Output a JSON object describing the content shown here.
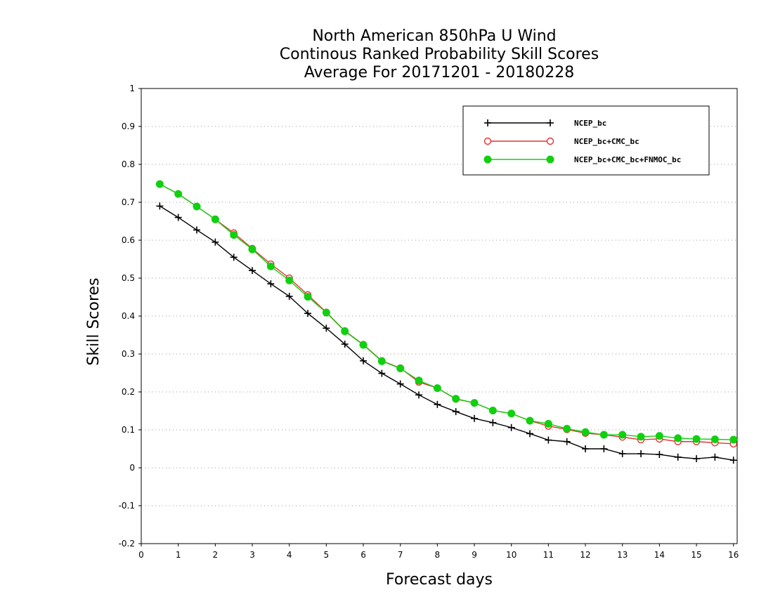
{
  "chart_data": {
    "type": "line",
    "title": [
      "North American 850hPa U Wind",
      "Continous Ranked Probability Skill Scores",
      "Average For 20171201 - 20180228"
    ],
    "xlabel": "Forecast days",
    "ylabel": "Skill Scores",
    "xlim": [
      0,
      16.1
    ],
    "ylim": [
      -0.2,
      1
    ],
    "xticks": [
      0,
      1,
      2,
      3,
      4,
      5,
      6,
      7,
      8,
      9,
      10,
      11,
      12,
      13,
      14,
      15,
      16
    ],
    "xtick_labels": [
      "0",
      "1",
      "2",
      "3",
      "4",
      "5",
      "6",
      "7",
      "8",
      "9",
      "10",
      "11",
      "12",
      "13",
      "14",
      "15",
      "16"
    ],
    "yticks": [
      -0.2,
      -0.1,
      0,
      0.1,
      0.2,
      0.3,
      0.4,
      0.5,
      0.6,
      0.7,
      0.8,
      0.9,
      1
    ],
    "ytick_labels": [
      "-0.2",
      "-0.1",
      "0",
      "0.1",
      "0.2",
      "0.3",
      "0.4",
      "0.5",
      "0.6",
      "0.7",
      "0.8",
      "0.9",
      "1"
    ],
    "grid": "horizontal dotted",
    "legend_position": "top-right",
    "x": [
      0.5,
      1,
      1.5,
      2,
      2.5,
      3,
      3.5,
      4,
      4.5,
      5,
      5.5,
      6,
      6.5,
      7,
      7.5,
      8,
      8.5,
      9,
      9.5,
      10,
      10.5,
      11,
      11.5,
      12,
      12.5,
      13,
      13.5,
      14,
      14.5,
      15,
      15.5,
      16
    ],
    "series": [
      {
        "name": "NCEP_bc",
        "color": "#000000",
        "marker": "plus",
        "values": [
          0.69,
          0.66,
          0.627,
          0.595,
          0.555,
          0.52,
          0.485,
          0.452,
          0.407,
          0.368,
          0.326,
          0.282,
          0.249,
          0.221,
          0.192,
          0.167,
          0.148,
          0.13,
          0.119,
          0.106,
          0.09,
          0.073,
          0.069,
          0.05,
          0.05,
          0.037,
          0.037,
          0.035,
          0.028,
          0.024,
          0.028,
          0.02
        ]
      },
      {
        "name": "NCEP_bc+CMC_bc",
        "color": "#e83030",
        "marker": "open-circle",
        "values": [
          0.748,
          0.722,
          0.689,
          0.655,
          0.619,
          0.578,
          0.537,
          0.5,
          0.456,
          0.41,
          0.361,
          0.325,
          0.282,
          0.263,
          0.226,
          0.21,
          0.181,
          0.171,
          0.151,
          0.143,
          0.124,
          0.11,
          0.101,
          0.091,
          0.087,
          0.081,
          0.074,
          0.076,
          0.069,
          0.069,
          0.066,
          0.063
        ]
      },
      {
        "name": "NCEP_bc+CMC_bc+FNMOC_bc",
        "color": "#10d010",
        "marker": "filled-circle",
        "values": [
          0.748,
          0.722,
          0.689,
          0.655,
          0.614,
          0.576,
          0.531,
          0.494,
          0.451,
          0.409,
          0.36,
          0.324,
          0.281,
          0.262,
          0.23,
          0.21,
          0.182,
          0.171,
          0.151,
          0.143,
          0.124,
          0.116,
          0.103,
          0.094,
          0.087,
          0.087,
          0.082,
          0.084,
          0.078,
          0.076,
          0.075,
          0.074
        ]
      }
    ]
  }
}
